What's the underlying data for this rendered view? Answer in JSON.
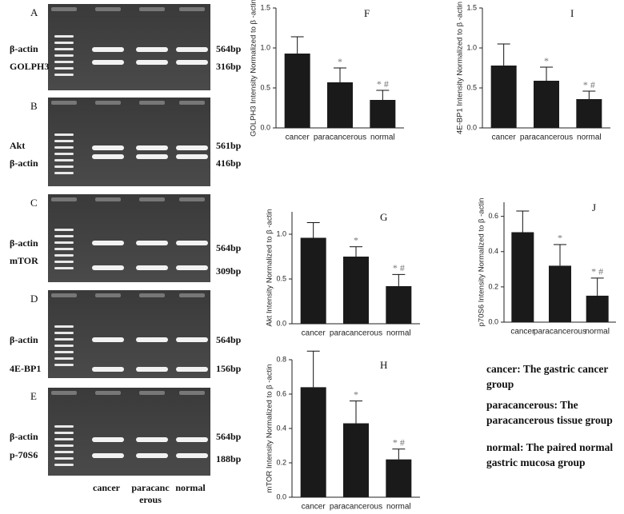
{
  "gels": [
    {
      "panel": "A",
      "left": [
        "β-actin",
        "GOLPH3"
      ],
      "right": [
        "564bp",
        "316bp"
      ]
    },
    {
      "panel": "B",
      "left": [
        "Akt",
        "β-actin"
      ],
      "right": [
        "561bp",
        "416bp"
      ]
    },
    {
      "panel": "C",
      "left": [
        "β-actin",
        "mTOR"
      ],
      "right": [
        "564bp",
        "309bp"
      ]
    },
    {
      "panel": "D",
      "left": [
        "β-actin",
        "4E-BP1"
      ],
      "right": [
        "564bp",
        "156bp"
      ]
    },
    {
      "panel": "E",
      "left": [
        "β-actin",
        "p-70S6"
      ],
      "right": [
        "564bp",
        "188bp"
      ]
    }
  ],
  "lanes": [
    [
      "cancer"
    ],
    [
      "paracanc",
      "erous"
    ],
    [
      "normal"
    ]
  ],
  "chart_data": [
    {
      "type": "bar",
      "panel": "F",
      "ylabel": "GOLPH3 Intensity Normalized to β -actin",
      "color": "#1a1a1a",
      "categories": [
        "cancer",
        "paracancerous",
        "normal"
      ],
      "values": [
        0.93,
        0.57,
        0.35
      ],
      "errors": [
        0.21,
        0.18,
        0.12
      ],
      "significance": [
        null,
        "*",
        "* #"
      ],
      "ylim": [
        0,
        1.5
      ],
      "yticks": [
        {
          "value": 0,
          "label": "0.0"
        },
        0.5,
        {
          "value": 1,
          "label": "1.0"
        },
        1.5
      ]
    },
    {
      "type": "bar",
      "panel": "I",
      "ylabel": "4E-BP1 Intensity Normalized to β -actin",
      "color": "#1a1a1a",
      "categories": [
        "cancer",
        "paracancerous",
        "normal"
      ],
      "values": [
        0.78,
        0.59,
        0.36
      ],
      "errors": [
        0.27,
        0.17,
        0.1
      ],
      "significance": [
        null,
        "*",
        "* #"
      ],
      "ylim": [
        0,
        1.5
      ],
      "yticks": [
        {
          "value": 0,
          "label": "0.0"
        },
        0.5,
        {
          "value": 1,
          "label": "1.0"
        },
        1.5
      ]
    },
    {
      "type": "bar",
      "panel": "G",
      "ylabel": "Akt Intensity Normalized to β -actin",
      "color": "#1a1a1a",
      "categories": [
        "cancer",
        "paracancerous",
        "normal"
      ],
      "values": [
        0.96,
        0.75,
        0.42
      ],
      "errors": [
        0.17,
        0.11,
        0.13
      ],
      "significance": [
        null,
        "*",
        "* #"
      ],
      "ylim": [
        0,
        1.25
      ],
      "yticks": [
        {
          "value": 0,
          "label": "0.0"
        },
        0.5,
        {
          "value": 1,
          "label": "1.0"
        }
      ]
    },
    {
      "type": "bar",
      "panel": "J",
      "ylabel": "p70S6 Intensity Normalized to β -actin",
      "color": "#1a1a1a",
      "categories": [
        "cancer",
        "paracancerous",
        "normal"
      ],
      "values": [
        0.51,
        0.32,
        0.15
      ],
      "errors": [
        0.12,
        0.12,
        0.1
      ],
      "significance": [
        null,
        "*",
        "* #"
      ],
      "ylim": [
        0,
        0.68
      ],
      "yticks": [
        {
          "value": 0,
          "label": "0.0"
        },
        0.2,
        0.4,
        0.6
      ]
    },
    {
      "type": "bar",
      "panel": "H",
      "ylabel": "mTOR Intensity Normalized to β -actin",
      "color": "#1a1a1a",
      "categories": [
        "cancer",
        "paracancerous",
        "normal"
      ],
      "values": [
        0.64,
        0.43,
        0.22
      ],
      "errors": [
        0.21,
        0.13,
        0.06
      ],
      "significance": [
        null,
        "*",
        "* #"
      ],
      "ylim": [
        0,
        0.8
      ],
      "yticks": [
        {
          "value": 0,
          "label": "0.0"
        },
        0.2,
        0.4,
        0.6,
        0.8
      ]
    }
  ],
  "legend": [
    "cancer: The gastric cancer group",
    "paracancerous: The paracancerous tissue group",
    "normal: The paired normal gastric mucosa group"
  ]
}
